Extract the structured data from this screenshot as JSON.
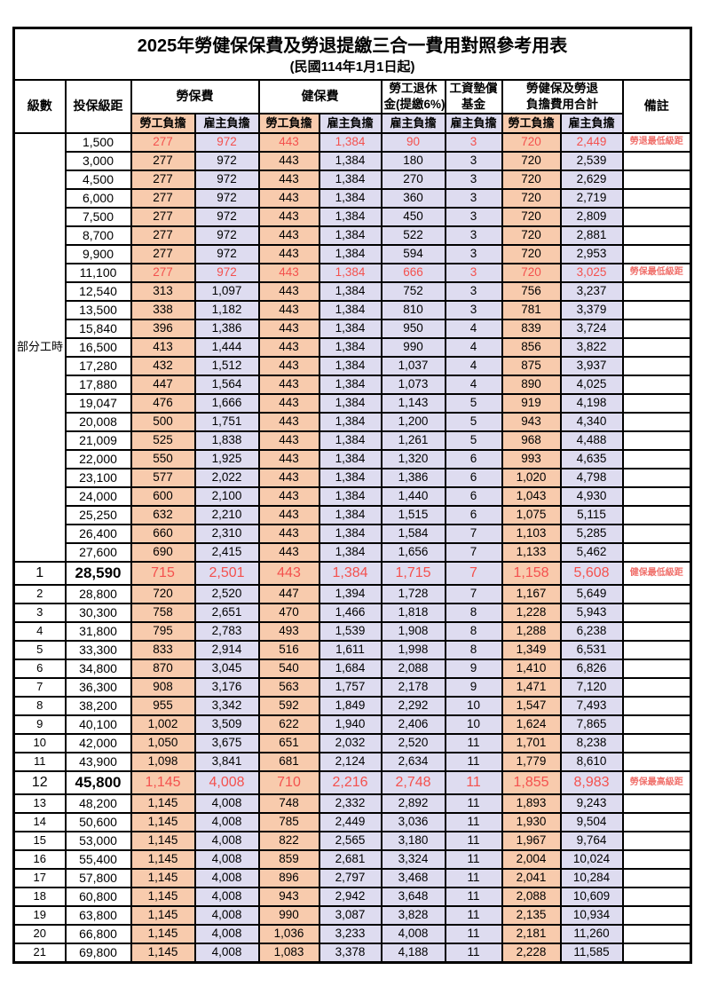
{
  "title": "2025年勞健保保費及勞退提繳三合一費用對照參考用表",
  "subtitle": "(民國114年1月1日起)",
  "colors": {
    "employee_col_bg": "#F8CBAD",
    "employer_col_bg": "#DEDCF0",
    "highlight_text": "#F4514E",
    "remark_text": "#F0716C",
    "border": "#000000"
  },
  "header": {
    "level": "級數",
    "bracket": "投保級距",
    "labor_ins": "勞保費",
    "health_ins": "健保費",
    "pension_line1": "勞工退休",
    "pension_line2": "金(提繳6%)",
    "wage_fund_line1": "工資墊償",
    "wage_fund_line2": "基金",
    "total_line1": "勞健保及勞退",
    "total_line2": "負擔費用合計",
    "remark": "備註",
    "employee": "勞工負擔",
    "employer": "雇主負擔"
  },
  "part_time_label": "部分工時",
  "part_time_span": 23,
  "rows": [
    {
      "level": "",
      "bracket": "1,500",
      "labor_emp": "277",
      "labor_er": "972",
      "health_emp": "443",
      "health_er": "1,384",
      "pension": "90",
      "wage_fund": "3",
      "total_emp": "720",
      "total_er": "2,449",
      "remark": "勞退最低級距",
      "red": true,
      "large": false
    },
    {
      "level": "",
      "bracket": "3,000",
      "labor_emp": "277",
      "labor_er": "972",
      "health_emp": "443",
      "health_er": "1,384",
      "pension": "180",
      "wage_fund": "3",
      "total_emp": "720",
      "total_er": "2,539",
      "remark": "",
      "red": false,
      "large": false
    },
    {
      "level": "",
      "bracket": "4,500",
      "labor_emp": "277",
      "labor_er": "972",
      "health_emp": "443",
      "health_er": "1,384",
      "pension": "270",
      "wage_fund": "3",
      "total_emp": "720",
      "total_er": "2,629",
      "remark": "",
      "red": false,
      "large": false
    },
    {
      "level": "",
      "bracket": "6,000",
      "labor_emp": "277",
      "labor_er": "972",
      "health_emp": "443",
      "health_er": "1,384",
      "pension": "360",
      "wage_fund": "3",
      "total_emp": "720",
      "total_er": "2,719",
      "remark": "",
      "red": false,
      "large": false
    },
    {
      "level": "",
      "bracket": "7,500",
      "labor_emp": "277",
      "labor_er": "972",
      "health_emp": "443",
      "health_er": "1,384",
      "pension": "450",
      "wage_fund": "3",
      "total_emp": "720",
      "total_er": "2,809",
      "remark": "",
      "red": false,
      "large": false
    },
    {
      "level": "",
      "bracket": "8,700",
      "labor_emp": "277",
      "labor_er": "972",
      "health_emp": "443",
      "health_er": "1,384",
      "pension": "522",
      "wage_fund": "3",
      "total_emp": "720",
      "total_er": "2,881",
      "remark": "",
      "red": false,
      "large": false
    },
    {
      "level": "",
      "bracket": "9,900",
      "labor_emp": "277",
      "labor_er": "972",
      "health_emp": "443",
      "health_er": "1,384",
      "pension": "594",
      "wage_fund": "3",
      "total_emp": "720",
      "total_er": "2,953",
      "remark": "",
      "red": false,
      "large": false
    },
    {
      "level": "",
      "bracket": "11,100",
      "labor_emp": "277",
      "labor_er": "972",
      "health_emp": "443",
      "health_er": "1,384",
      "pension": "666",
      "wage_fund": "3",
      "total_emp": "720",
      "total_er": "3,025",
      "remark": "勞保最低級距",
      "red": true,
      "large": false
    },
    {
      "level": "",
      "bracket": "12,540",
      "labor_emp": "313",
      "labor_er": "1,097",
      "health_emp": "443",
      "health_er": "1,384",
      "pension": "752",
      "wage_fund": "3",
      "total_emp": "756",
      "total_er": "3,237",
      "remark": "",
      "red": false,
      "large": false
    },
    {
      "level": "",
      "bracket": "13,500",
      "labor_emp": "338",
      "labor_er": "1,182",
      "health_emp": "443",
      "health_er": "1,384",
      "pension": "810",
      "wage_fund": "3",
      "total_emp": "781",
      "total_er": "3,379",
      "remark": "",
      "red": false,
      "large": false
    },
    {
      "level": "",
      "bracket": "15,840",
      "labor_emp": "396",
      "labor_er": "1,386",
      "health_emp": "443",
      "health_er": "1,384",
      "pension": "950",
      "wage_fund": "4",
      "total_emp": "839",
      "total_er": "3,724",
      "remark": "",
      "red": false,
      "large": false
    },
    {
      "level": "",
      "bracket": "16,500",
      "labor_emp": "413",
      "labor_er": "1,444",
      "health_emp": "443",
      "health_er": "1,384",
      "pension": "990",
      "wage_fund": "4",
      "total_emp": "856",
      "total_er": "3,822",
      "remark": "",
      "red": false,
      "large": false
    },
    {
      "level": "",
      "bracket": "17,280",
      "labor_emp": "432",
      "labor_er": "1,512",
      "health_emp": "443",
      "health_er": "1,384",
      "pension": "1,037",
      "wage_fund": "4",
      "total_emp": "875",
      "total_er": "3,937",
      "remark": "",
      "red": false,
      "large": false
    },
    {
      "level": "",
      "bracket": "17,880",
      "labor_emp": "447",
      "labor_er": "1,564",
      "health_emp": "443",
      "health_er": "1,384",
      "pension": "1,073",
      "wage_fund": "4",
      "total_emp": "890",
      "total_er": "4,025",
      "remark": "",
      "red": false,
      "large": false
    },
    {
      "level": "",
      "bracket": "19,047",
      "labor_emp": "476",
      "labor_er": "1,666",
      "health_emp": "443",
      "health_er": "1,384",
      "pension": "1,143",
      "wage_fund": "5",
      "total_emp": "919",
      "total_er": "4,198",
      "remark": "",
      "red": false,
      "large": false
    },
    {
      "level": "",
      "bracket": "20,008",
      "labor_emp": "500",
      "labor_er": "1,751",
      "health_emp": "443",
      "health_er": "1,384",
      "pension": "1,200",
      "wage_fund": "5",
      "total_emp": "943",
      "total_er": "4,340",
      "remark": "",
      "red": false,
      "large": false
    },
    {
      "level": "",
      "bracket": "21,009",
      "labor_emp": "525",
      "labor_er": "1,838",
      "health_emp": "443",
      "health_er": "1,384",
      "pension": "1,261",
      "wage_fund": "5",
      "total_emp": "968",
      "total_er": "4,488",
      "remark": "",
      "red": false,
      "large": false
    },
    {
      "level": "",
      "bracket": "22,000",
      "labor_emp": "550",
      "labor_er": "1,925",
      "health_emp": "443",
      "health_er": "1,384",
      "pension": "1,320",
      "wage_fund": "6",
      "total_emp": "993",
      "total_er": "4,635",
      "remark": "",
      "red": false,
      "large": false
    },
    {
      "level": "",
      "bracket": "23,100",
      "labor_emp": "577",
      "labor_er": "2,022",
      "health_emp": "443",
      "health_er": "1,384",
      "pension": "1,386",
      "wage_fund": "6",
      "total_emp": "1,020",
      "total_er": "4,798",
      "remark": "",
      "red": false,
      "large": false
    },
    {
      "level": "",
      "bracket": "24,000",
      "labor_emp": "600",
      "labor_er": "2,100",
      "health_emp": "443",
      "health_er": "1,384",
      "pension": "1,440",
      "wage_fund": "6",
      "total_emp": "1,043",
      "total_er": "4,930",
      "remark": "",
      "red": false,
      "large": false
    },
    {
      "level": "",
      "bracket": "25,250",
      "labor_emp": "632",
      "labor_er": "2,210",
      "health_emp": "443",
      "health_er": "1,384",
      "pension": "1,515",
      "wage_fund": "6",
      "total_emp": "1,075",
      "total_er": "5,115",
      "remark": "",
      "red": false,
      "large": false
    },
    {
      "level": "",
      "bracket": "26,400",
      "labor_emp": "660",
      "labor_er": "2,310",
      "health_emp": "443",
      "health_er": "1,384",
      "pension": "1,584",
      "wage_fund": "7",
      "total_emp": "1,103",
      "total_er": "5,285",
      "remark": "",
      "red": false,
      "large": false
    },
    {
      "level": "",
      "bracket": "27,600",
      "labor_emp": "690",
      "labor_er": "2,415",
      "health_emp": "443",
      "health_er": "1,384",
      "pension": "1,656",
      "wage_fund": "7",
      "total_emp": "1,133",
      "total_er": "5,462",
      "remark": "",
      "red": false,
      "large": false
    },
    {
      "level": "1",
      "bracket": "28,590",
      "labor_emp": "715",
      "labor_er": "2,501",
      "health_emp": "443",
      "health_er": "1,384",
      "pension": "1,715",
      "wage_fund": "7",
      "total_emp": "1,158",
      "total_er": "5,608",
      "remark": "健保最低級距",
      "red": true,
      "large": true
    },
    {
      "level": "2",
      "bracket": "28,800",
      "labor_emp": "720",
      "labor_er": "2,520",
      "health_emp": "447",
      "health_er": "1,394",
      "pension": "1,728",
      "wage_fund": "7",
      "total_emp": "1,167",
      "total_er": "5,649",
      "remark": "",
      "red": false,
      "large": false
    },
    {
      "level": "3",
      "bracket": "30,300",
      "labor_emp": "758",
      "labor_er": "2,651",
      "health_emp": "470",
      "health_er": "1,466",
      "pension": "1,818",
      "wage_fund": "8",
      "total_emp": "1,228",
      "total_er": "5,943",
      "remark": "",
      "red": false,
      "large": false
    },
    {
      "level": "4",
      "bracket": "31,800",
      "labor_emp": "795",
      "labor_er": "2,783",
      "health_emp": "493",
      "health_er": "1,539",
      "pension": "1,908",
      "wage_fund": "8",
      "total_emp": "1,288",
      "total_er": "6,238",
      "remark": "",
      "red": false,
      "large": false
    },
    {
      "level": "5",
      "bracket": "33,300",
      "labor_emp": "833",
      "labor_er": "2,914",
      "health_emp": "516",
      "health_er": "1,611",
      "pension": "1,998",
      "wage_fund": "8",
      "total_emp": "1,349",
      "total_er": "6,531",
      "remark": "",
      "red": false,
      "large": false
    },
    {
      "level": "6",
      "bracket": "34,800",
      "labor_emp": "870",
      "labor_er": "3,045",
      "health_emp": "540",
      "health_er": "1,684",
      "pension": "2,088",
      "wage_fund": "9",
      "total_emp": "1,410",
      "total_er": "6,826",
      "remark": "",
      "red": false,
      "large": false
    },
    {
      "level": "7",
      "bracket": "36,300",
      "labor_emp": "908",
      "labor_er": "3,176",
      "health_emp": "563",
      "health_er": "1,757",
      "pension": "2,178",
      "wage_fund": "9",
      "total_emp": "1,471",
      "total_er": "7,120",
      "remark": "",
      "red": false,
      "large": false
    },
    {
      "level": "8",
      "bracket": "38,200",
      "labor_emp": "955",
      "labor_er": "3,342",
      "health_emp": "592",
      "health_er": "1,849",
      "pension": "2,292",
      "wage_fund": "10",
      "total_emp": "1,547",
      "total_er": "7,493",
      "remark": "",
      "red": false,
      "large": false
    },
    {
      "level": "9",
      "bracket": "40,100",
      "labor_emp": "1,002",
      "labor_er": "3,509",
      "health_emp": "622",
      "health_er": "1,940",
      "pension": "2,406",
      "wage_fund": "10",
      "total_emp": "1,624",
      "total_er": "7,865",
      "remark": "",
      "red": false,
      "large": false
    },
    {
      "level": "10",
      "bracket": "42,000",
      "labor_emp": "1,050",
      "labor_er": "3,675",
      "health_emp": "651",
      "health_er": "2,032",
      "pension": "2,520",
      "wage_fund": "11",
      "total_emp": "1,701",
      "total_er": "8,238",
      "remark": "",
      "red": false,
      "large": false
    },
    {
      "level": "11",
      "bracket": "43,900",
      "labor_emp": "1,098",
      "labor_er": "3,841",
      "health_emp": "681",
      "health_er": "2,124",
      "pension": "2,634",
      "wage_fund": "11",
      "total_emp": "1,779",
      "total_er": "8,610",
      "remark": "",
      "red": false,
      "large": false
    },
    {
      "level": "12",
      "bracket": "45,800",
      "labor_emp": "1,145",
      "labor_er": "4,008",
      "health_emp": "710",
      "health_er": "2,216",
      "pension": "2,748",
      "wage_fund": "11",
      "total_emp": "1,855",
      "total_er": "8,983",
      "remark": "勞保最高級距",
      "red": true,
      "large": true
    },
    {
      "level": "13",
      "bracket": "48,200",
      "labor_emp": "1,145",
      "labor_er": "4,008",
      "health_emp": "748",
      "health_er": "2,332",
      "pension": "2,892",
      "wage_fund": "11",
      "total_emp": "1,893",
      "total_er": "9,243",
      "remark": "",
      "red": false,
      "large": false
    },
    {
      "level": "14",
      "bracket": "50,600",
      "labor_emp": "1,145",
      "labor_er": "4,008",
      "health_emp": "785",
      "health_er": "2,449",
      "pension": "3,036",
      "wage_fund": "11",
      "total_emp": "1,930",
      "total_er": "9,504",
      "remark": "",
      "red": false,
      "large": false
    },
    {
      "level": "15",
      "bracket": "53,000",
      "labor_emp": "1,145",
      "labor_er": "4,008",
      "health_emp": "822",
      "health_er": "2,565",
      "pension": "3,180",
      "wage_fund": "11",
      "total_emp": "1,967",
      "total_er": "9,764",
      "remark": "",
      "red": false,
      "large": false
    },
    {
      "level": "16",
      "bracket": "55,400",
      "labor_emp": "1,145",
      "labor_er": "4,008",
      "health_emp": "859",
      "health_er": "2,681",
      "pension": "3,324",
      "wage_fund": "11",
      "total_emp": "2,004",
      "total_er": "10,024",
      "remark": "",
      "red": false,
      "large": false
    },
    {
      "level": "17",
      "bracket": "57,800",
      "labor_emp": "1,145",
      "labor_er": "4,008",
      "health_emp": "896",
      "health_er": "2,797",
      "pension": "3,468",
      "wage_fund": "11",
      "total_emp": "2,041",
      "total_er": "10,284",
      "remark": "",
      "red": false,
      "large": false
    },
    {
      "level": "18",
      "bracket": "60,800",
      "labor_emp": "1,145",
      "labor_er": "4,008",
      "health_emp": "943",
      "health_er": "2,942",
      "pension": "3,648",
      "wage_fund": "11",
      "total_emp": "2,088",
      "total_er": "10,609",
      "remark": "",
      "red": false,
      "large": false
    },
    {
      "level": "19",
      "bracket": "63,800",
      "labor_emp": "1,145",
      "labor_er": "4,008",
      "health_emp": "990",
      "health_er": "3,087",
      "pension": "3,828",
      "wage_fund": "11",
      "total_emp": "2,135",
      "total_er": "10,934",
      "remark": "",
      "red": false,
      "large": false
    },
    {
      "level": "20",
      "bracket": "66,800",
      "labor_emp": "1,145",
      "labor_er": "4,008",
      "health_emp": "1,036",
      "health_er": "3,233",
      "pension": "4,008",
      "wage_fund": "11",
      "total_emp": "2,181",
      "total_er": "11,260",
      "remark": "",
      "red": false,
      "large": false
    },
    {
      "level": "21",
      "bracket": "69,800",
      "labor_emp": "1,145",
      "labor_er": "4,008",
      "health_emp": "1,083",
      "health_er": "3,378",
      "pension": "4,188",
      "wage_fund": "11",
      "total_emp": "2,228",
      "total_er": "11,585",
      "remark": "",
      "red": false,
      "large": false
    }
  ]
}
